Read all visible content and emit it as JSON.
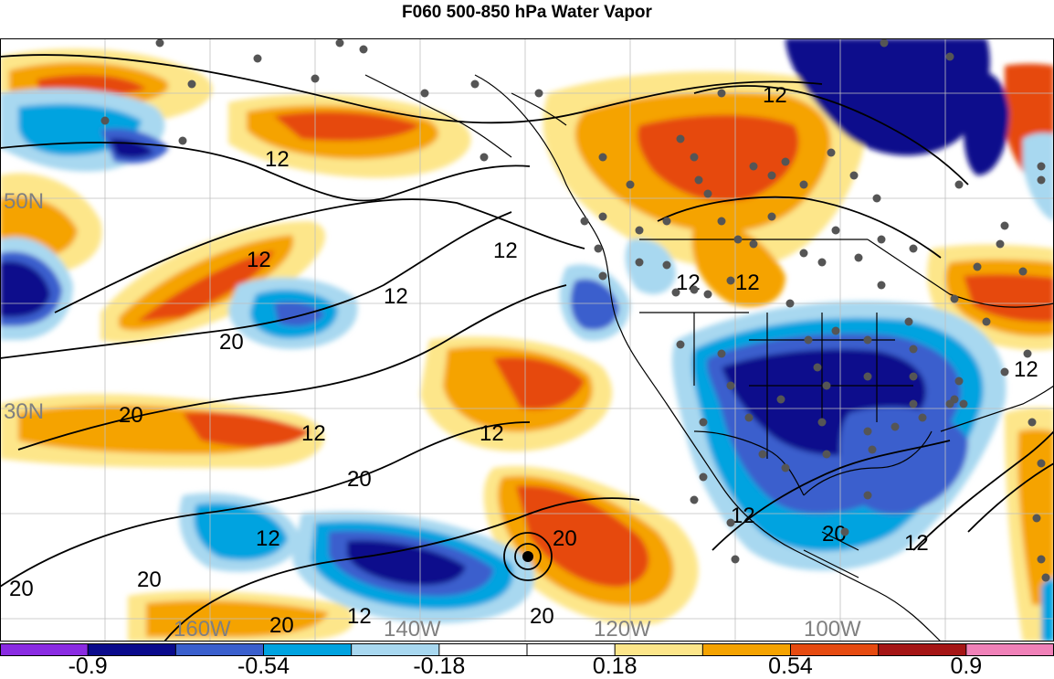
{
  "title": "F060 500-850 hPa Water Vapor",
  "lat_labels": [
    "50N",
    "30N"
  ],
  "lon_labels": [
    "160W",
    "140W",
    "120W",
    "100W"
  ],
  "contour_labels": [
    "12",
    "20"
  ],
  "colorbar": {
    "colors": [
      "#8a2be2",
      "#0a0a8c",
      "#3a5fcd",
      "#00a3e0",
      "#a8d8f0",
      "#ffffff",
      "#ffffff",
      "#fde68a",
      "#f5a300",
      "#e64a10",
      "#a51515",
      "#f081b8"
    ],
    "tick_labels": [
      "-0.9",
      "-0.54",
      "-0.18",
      "0.18",
      "0.54",
      "0.9"
    ]
  },
  "colors": {
    "background": "#ffffff",
    "contour": "#000000",
    "border": "#000000",
    "grid": "#bfbfbf",
    "station_dot": "#555555",
    "axis_label": "#808080"
  }
}
